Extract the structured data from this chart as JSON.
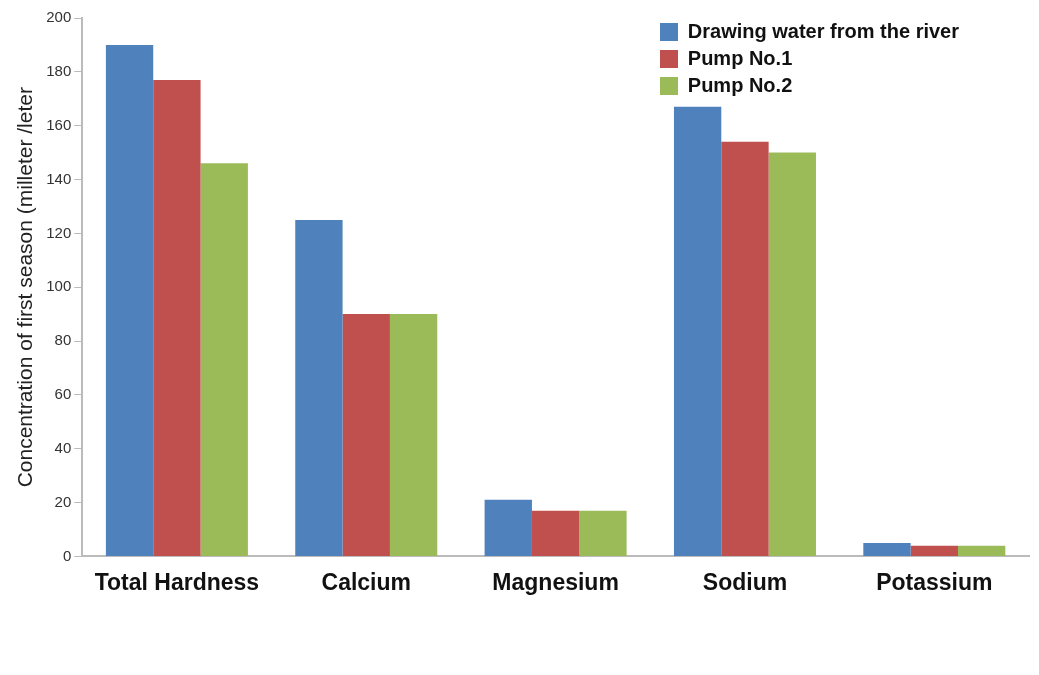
{
  "chart_data": {
    "type": "bar",
    "ylabel": "Concentration of first season (milleter /leter",
    "categories": [
      "Total Hardness",
      "Calcium",
      "Magnesium",
      "Sodium",
      "Potassium"
    ],
    "series": [
      {
        "name": "Drawing water from the river",
        "color": "#4f81bd",
        "values": [
          190,
          125,
          21,
          167,
          5
        ]
      },
      {
        "name": "Pump No.1",
        "color": "#c0504d",
        "values": [
          177,
          90,
          17,
          154,
          4
        ]
      },
      {
        "name": "Pump No.2",
        "color": "#9bbb59",
        "values": [
          146,
          90,
          17,
          150,
          4
        ]
      }
    ],
    "ylim": [
      0,
      200
    ],
    "yticks": [
      0,
      20,
      40,
      60,
      80,
      100,
      120,
      140,
      160,
      180,
      200
    ],
    "grid": false,
    "legend": "top right"
  }
}
